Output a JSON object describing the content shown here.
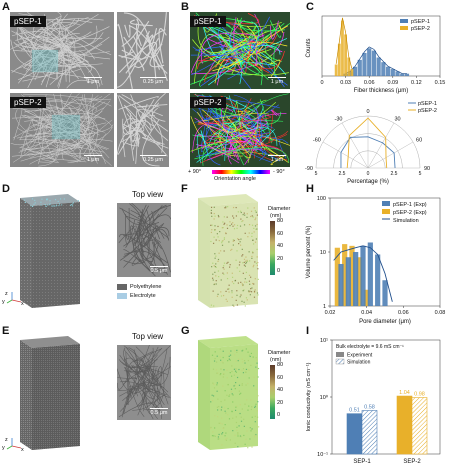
{
  "panels": {
    "A": "A",
    "B": "B",
    "C": "C",
    "D": "D",
    "E": "E",
    "F": "F",
    "G": "G",
    "H": "H",
    "I": "I"
  },
  "sem": {
    "tag_top": "pSEP-1",
    "tag_bottom": "pSEP-2",
    "scale_1um": "1 μm",
    "scale_025um": "0.25 μm",
    "scale_05um": "0.5 μm"
  },
  "orientation": {
    "label": "Orientation angle",
    "left": "+ 90°",
    "right": "- 90°"
  },
  "topview": {
    "title": "Top view",
    "legend_pe": "Polyethylene",
    "legend_el": "Electrolyte",
    "axis_x": "x",
    "axis_y": "y",
    "axis_z": "z"
  },
  "diameter": {
    "title": "Diameter",
    "unit": "(nm)",
    "ticks": [
      "80",
      "60",
      "40",
      "20",
      "0"
    ]
  },
  "colors": {
    "pSEP1": "#4f7fb5",
    "pSEP2": "#e8b02a",
    "simulation": "#1f4e8c"
  },
  "chart_data": [
    {
      "id": "C-top",
      "type": "bar",
      "xlabel": "Fiber thickness (μm)",
      "ylabel": "Counts",
      "xticks": [
        "0",
        "0.03",
        "0.06",
        "0.09",
        "0.12",
        "0.15"
      ],
      "xlim": [
        0,
        0.15
      ],
      "series": [
        {
          "name": "pSEP-1",
          "x": [
            0.03,
            0.036,
            0.042,
            0.048,
            0.054,
            0.06,
            0.066,
            0.072,
            0.078,
            0.084,
            0.09,
            0.096,
            0.102,
            0.108
          ],
          "values": [
            1,
            2,
            4,
            7,
            10,
            12,
            11,
            8,
            6,
            4,
            3,
            2,
            1,
            1
          ]
        },
        {
          "name": "pSEP-2",
          "x": [
            0.018,
            0.022,
            0.026,
            0.03,
            0.034,
            0.038
          ],
          "values": [
            5,
            14,
            24,
            18,
            8,
            3
          ]
        }
      ],
      "legend": "top-right"
    },
    {
      "id": "C-polar",
      "type": "line",
      "xlabel": "Percentage (%)",
      "angle_ticks": [
        "0",
        "30",
        "60",
        "90",
        "-30",
        "-60",
        "-90"
      ],
      "radial_ticks": [
        "5",
        "2.5",
        "0",
        "2.5",
        "5"
      ],
      "series": [
        {
          "name": "pSEP-1",
          "angles": [
            -90,
            -60,
            -30,
            0,
            30,
            60,
            90
          ],
          "values": [
            2.6,
            3.0,
            3.4,
            3.0,
            2.8,
            2.9,
            2.6
          ]
        },
        {
          "name": "pSEP-2",
          "angles": [
            -90,
            -60,
            -30,
            0,
            30,
            60,
            90
          ],
          "values": [
            2.0,
            2.2,
            3.6,
            4.8,
            3.4,
            2.0,
            1.8
          ]
        }
      ],
      "legend": "top-right"
    },
    {
      "id": "H",
      "type": "bar",
      "xlabel": "Pore diameter (μm)",
      "ylabel": "Volume percent (%)",
      "xticks": [
        "0.02",
        "0.04",
        "0.06",
        "0.08"
      ],
      "yticks": [
        "1",
        "10",
        "100"
      ],
      "xlim": [
        0.02,
        0.08
      ],
      "yscale": "log",
      "ylim": [
        1,
        100
      ],
      "series": [
        {
          "name": "pSEP-1 (Exp)",
          "x": [
            0.026,
            0.03,
            0.034,
            0.038,
            0.042,
            0.046,
            0.05
          ],
          "values": [
            6,
            8,
            10,
            13,
            15,
            9,
            3
          ]
        },
        {
          "name": "pSEP-2 (Exp)",
          "x": [
            0.024,
            0.028,
            0.032,
            0.036,
            0.04
          ],
          "values": [
            12,
            14,
            13,
            8,
            2
          ]
        },
        {
          "name": "Simulation",
          "x": [
            0.022,
            0.026,
            0.03,
            0.034,
            0.038,
            0.042,
            0.046,
            0.05,
            0.054
          ],
          "values": [
            7,
            10,
            11,
            12,
            13,
            12,
            9,
            4,
            1.2
          ]
        }
      ],
      "legend": "top-right"
    },
    {
      "id": "I",
      "type": "bar",
      "ylabel": "Ionic conductivity (mS cm⁻¹)",
      "annotation": "Bulk electrolyte = 9.6 mS cm⁻¹",
      "categories": [
        "SEP-1",
        "SEP-2"
      ],
      "yscale": "log",
      "yticks": [
        "10⁻¹",
        "10⁰",
        "10¹"
      ],
      "ylim": [
        0.1,
        10
      ],
      "series": [
        {
          "name": "Experiment",
          "values": [
            0.51,
            1.04
          ]
        },
        {
          "name": "Simulation",
          "values": [
            0.58,
            0.98
          ]
        }
      ],
      "labels": [
        [
          "0.51",
          "0.58"
        ],
        [
          "1.04",
          "0.98"
        ]
      ],
      "legend": "top-left"
    }
  ]
}
